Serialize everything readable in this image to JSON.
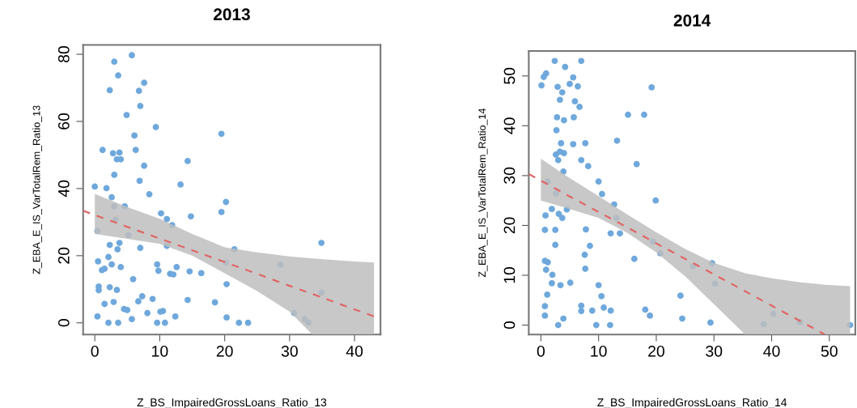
{
  "chart_data": [
    {
      "type": "scatter",
      "title": "2013",
      "xlabel": "Z_BS_ImpairedGrossLoans_Ratio_13",
      "ylabel": "Z_EBA_E_IS_VarTotalRem_Ratio_13",
      "xlim": [
        -1.8,
        44
      ],
      "ylim": [
        -3.5,
        82.8
      ],
      "xticks": [
        0,
        10,
        20,
        30,
        40
      ],
      "yticks": [
        0,
        20,
        40,
        60,
        80
      ],
      "grid": false,
      "legend": false,
      "series": [
        {
          "type": "scatter",
          "color": "#6fa8dc",
          "marker": "circle",
          "x": [
            5.7,
            3.0,
            3.6,
            7.6,
            2.3,
            6.8,
            7.0,
            4.9,
            9.4,
            19.5,
            6.1,
            1.2,
            6.3,
            2.8,
            3.8,
            3.4,
            4.0,
            14.3,
            7.6,
            3.0,
            6.9,
            13.2,
            0.0,
            1.8,
            8.4,
            2.6,
            20.2,
            3.0,
            4.6,
            19.5,
            10.2,
            14.8,
            11.1,
            3.2,
            11.9,
            0.4,
            5.2,
            3.8,
            11.1,
            34.9,
            2.3,
            7.0,
            3.5,
            21.5,
            2.1,
            0.5,
            2.6,
            20.2,
            28.6,
            9.6,
            4.0,
            12.6,
            1.1,
            1.5,
            9.8,
            14.6,
            16.4,
            11.6,
            12.1,
            5.9,
            0.6,
            0.6,
            2.3,
            3.4,
            20.3,
            34.9,
            7.3,
            8.9,
            14.3,
            6.7,
            2.9,
            18.5,
            1.5,
            4.5,
            5.0,
            10.5,
            10.1,
            8.1,
            30.7,
            32.3,
            32.9,
            0.4,
            12.4,
            20.3,
            5.7,
            2.1,
            3.6,
            9.6,
            10.8,
            22.2,
            23.6
          ],
          "values": [
            79.7,
            77.8,
            73.7,
            71.5,
            69.3,
            69.1,
            64.6,
            61.9,
            58.3,
            56.3,
            55.8,
            51.5,
            51.5,
            50.5,
            50.7,
            48.7,
            48.7,
            48.2,
            46.8,
            44.1,
            42.3,
            41.2,
            40.6,
            40.1,
            38.3,
            37.4,
            36.0,
            34.7,
            34.7,
            33.0,
            32.6,
            31.7,
            30.9,
            30.7,
            29.1,
            27.4,
            26.1,
            23.8,
            22.9,
            23.8,
            23.2,
            22.3,
            21.9,
            21.9,
            19.6,
            18.3,
            17.4,
            17.9,
            17.3,
            17.4,
            16.6,
            16.6,
            15.7,
            16.1,
            15.5,
            15.3,
            14.8,
            14.6,
            14.4,
            13.0,
            10.8,
            9.7,
            10.6,
            9.8,
            11.5,
            9.0,
            7.9,
            7.1,
            6.8,
            6.4,
            6.2,
            6.1,
            5.6,
            4.1,
            3.8,
            3.5,
            3.3,
            2.9,
            2.9,
            1.1,
            0,
            1.9,
            1.9,
            1.6,
            1.1,
            0,
            0,
            0,
            0,
            0,
            0
          ]
        },
        {
          "type": "line",
          "color": "#e06666",
          "line_style": "dashed",
          "x": [
            -1.8,
            0,
            5,
            10,
            15,
            20,
            25,
            30,
            33.5,
            40,
            43
          ],
          "values": [
            33.4,
            32.1,
            28.6,
            25.1,
            21.6,
            18.1,
            14.6,
            11.0,
            8.6,
            4.0,
            1.9
          ],
          "lower": [
            null,
            26.5,
            25.0,
            23.5,
            20.0,
            14.8,
            9.5,
            3.3,
            -3.5,
            -3.5,
            -3.5
          ],
          "upper": [
            null,
            38.4,
            34.5,
            31.0,
            26.5,
            22.5,
            21.0,
            19.8,
            19.2,
            18.3,
            18.0
          ]
        }
      ]
    },
    {
      "type": "scatter",
      "title": "2014",
      "xlabel": "Z_BS_ImpairedGrossLoans_Ratio_14",
      "ylabel": "Z_EBA_E_IS_VarTotalRem_Ratio_14",
      "xlim": [
        -2.1,
        54.5
      ],
      "ylim": [
        -1.9,
        55.0
      ],
      "xticks": [
        0,
        10,
        20,
        30,
        40,
        50
      ],
      "yticks": [
        0,
        10,
        20,
        30,
        40,
        50
      ],
      "grid": false,
      "legend": false,
      "series": [
        {
          "type": "scatter",
          "color": "#6fa8dc",
          "marker": "circle",
          "x": [
            2.4,
            7.0,
            4.2,
            0.9,
            0.5,
            0.1,
            5.6,
            5.0,
            6.4,
            2.9,
            19.2,
            3.7,
            3.3,
            5.9,
            6.7,
            15.1,
            17.9,
            2.8,
            5.7,
            4.0,
            2.7,
            13.2,
            3.5,
            7.7,
            5.6,
            3.3,
            4.0,
            2.6,
            3.0,
            7.0,
            8.2,
            16.6,
            3.9,
            1.2,
            10.0,
            10.6,
            2.6,
            19.9,
            12.7,
            1.9,
            4.5,
            0.8,
            3.1,
            3.7,
            13.1,
            0.7,
            2.5,
            7.8,
            12.1,
            13.7,
            19.4,
            2.5,
            8.5,
            20.7,
            7.6,
            16.2,
            0.7,
            1.2,
            29.7,
            26.4,
            7.7,
            0.9,
            2.0,
            1.9,
            3.4,
            5.1,
            30.2,
            10.0,
            1.1,
            10.5,
            24.2,
            0.7,
            7.0,
            10.9,
            7.0,
            8.9,
            12.1,
            18.1,
            40.3,
            0.7,
            18.9,
            44.9,
            3.9,
            24.5,
            29.4,
            38.6,
            53.6,
            3.0,
            9.6,
            12.0
          ],
          "values": [
            53.0,
            53.0,
            51.8,
            50.5,
            49.8,
            48.1,
            49.7,
            48.4,
            47.9,
            47.8,
            47.7,
            46.7,
            45.2,
            44.9,
            43.8,
            42.2,
            42.2,
            41.7,
            41.7,
            41.1,
            39.1,
            37.0,
            36.5,
            36.5,
            36.3,
            34.8,
            34.5,
            34.2,
            33.1,
            33.1,
            31.9,
            32.3,
            30.8,
            28.8,
            28.8,
            26.3,
            26.4,
            25.0,
            24.2,
            23.3,
            23.2,
            22.0,
            22.3,
            21.5,
            21.5,
            19.1,
            19.1,
            19.2,
            18.4,
            18.4,
            16.8,
            16.1,
            15.9,
            14.4,
            14.1,
            13.3,
            12.9,
            12.6,
            12.4,
            11.8,
            11.3,
            11.1,
            10.1,
            8.4,
            8.0,
            8.5,
            8.3,
            8.0,
            6.1,
            5.8,
            5.9,
            3.8,
            3.9,
            3.5,
            2.8,
            2.9,
            2.9,
            3.1,
            2.2,
            1.9,
            1.9,
            0.6,
            1.3,
            1.3,
            0.5,
            0.2,
            0,
            0,
            0,
            0
          ]
        },
        {
          "type": "line",
          "color": "#e06666",
          "line_style": "dashed",
          "x": [
            -2.1,
            0,
            5,
            10,
            15,
            20,
            25,
            30,
            35.4,
            40,
            45,
            49.2,
            53.6
          ],
          "values": [
            30.3,
            29.0,
            25.8,
            22.7,
            19.6,
            16.4,
            13.3,
            10.2,
            6.8,
            3.9,
            0.8,
            -1.9,
            null
          ],
          "lower": [
            null,
            25.0,
            23.3,
            21.5,
            18.5,
            14.6,
            9.8,
            4.2,
            -1.9,
            -1.9,
            -1.9,
            -1.9,
            -1.9
          ],
          "upper": [
            null,
            33.4,
            29.5,
            25.9,
            22.2,
            18.6,
            15.3,
            12.5,
            10.4,
            9.4,
            8.6,
            8.1,
            7.8
          ]
        }
      ]
    }
  ]
}
